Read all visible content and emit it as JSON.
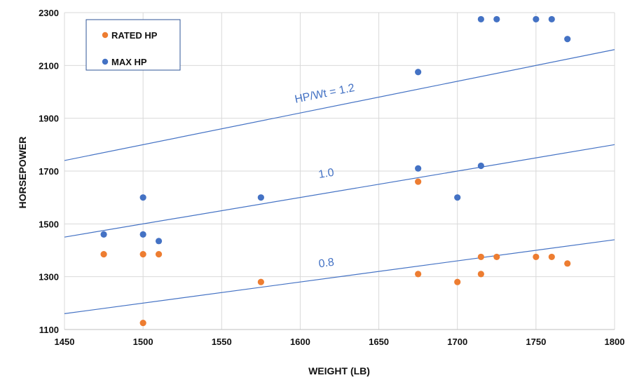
{
  "chart_data": {
    "type": "scatter",
    "xlabel": "WEIGHT (LB)",
    "ylabel": "HORSEPOWER",
    "xlim": [
      1450,
      1800
    ],
    "ylim": [
      1100,
      2300
    ],
    "x_ticks": [
      1450,
      1500,
      1550,
      1600,
      1650,
      1700,
      1750,
      1800
    ],
    "y_ticks": [
      1100,
      1300,
      1500,
      1700,
      1900,
      2100,
      2300
    ],
    "grid": true,
    "legend_position": "top-left",
    "series": [
      {
        "name": "RATED HP",
        "color": "#ED7D31",
        "points": [
          [
            1475,
            1385
          ],
          [
            1500,
            1385
          ],
          [
            1500,
            1125
          ],
          [
            1510,
            1385
          ],
          [
            1575,
            1280
          ],
          [
            1675,
            1660
          ],
          [
            1675,
            1310
          ],
          [
            1700,
            1280
          ],
          [
            1715,
            1375
          ],
          [
            1715,
            1310
          ],
          [
            1725,
            1375
          ],
          [
            1750,
            1375
          ],
          [
            1760,
            1375
          ],
          [
            1770,
            1350
          ]
        ]
      },
      {
        "name": "MAX HP",
        "color": "#4472C4",
        "points": [
          [
            1475,
            1460
          ],
          [
            1500,
            1600
          ],
          [
            1500,
            1460
          ],
          [
            1510,
            1435
          ],
          [
            1575,
            1600
          ],
          [
            1675,
            2075
          ],
          [
            1675,
            1710
          ],
          [
            1700,
            1600
          ],
          [
            1715,
            1720
          ],
          [
            1715,
            2275
          ],
          [
            1725,
            2275
          ],
          [
            1750,
            2275
          ],
          [
            1760,
            2275
          ],
          [
            1770,
            2200
          ]
        ]
      }
    ],
    "reference_lines": [
      {
        "ratio": 0.8,
        "label": "0.8",
        "label_x": 1612,
        "label_y": 1335
      },
      {
        "ratio": 1.0,
        "label": "1.0",
        "label_x": 1612,
        "label_y": 1673
      },
      {
        "ratio": 1.2,
        "label": "HP/Wt = 1.2",
        "label_x": 1597,
        "label_y": 1958
      }
    ],
    "reference_line_color": "#4472C4"
  }
}
